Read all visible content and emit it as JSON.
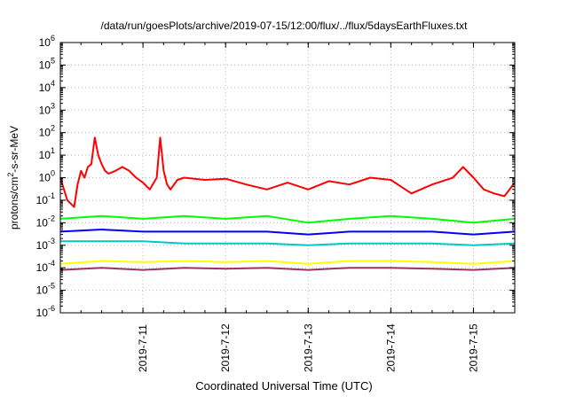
{
  "title": "/data/run/goesPlots/archive/2019-07-15/12:00/flux/../flux/5daysEarthFluxes.txt",
  "chart_data": {
    "type": "line",
    "title": "/data/run/goesPlots/archive/2019-07-15/12:00/flux/../flux/5daysEarthFluxes.txt",
    "xlabel": "Coordinated Universal Time (UTC)",
    "ylabel_parts": [
      "protons/cm",
      "2",
      "-s-sr-MeV"
    ],
    "y_scale": "log",
    "ylim": [
      1e-06,
      1000000.0
    ],
    "y_ticks": [
      {
        "value": -6,
        "base": "10",
        "exp": "-6"
      },
      {
        "value": -5,
        "base": "10",
        "exp": "-5"
      },
      {
        "value": -4,
        "base": "10",
        "exp": "-4"
      },
      {
        "value": -3,
        "base": "10",
        "exp": "-3"
      },
      {
        "value": -2,
        "base": "10",
        "exp": "-2"
      },
      {
        "value": -1,
        "base": "10",
        "exp": "-1"
      },
      {
        "value": 0,
        "base": "10",
        "exp": "0"
      },
      {
        "value": 1,
        "base": "10",
        "exp": "1"
      },
      {
        "value": 2,
        "base": "10",
        "exp": "2"
      },
      {
        "value": 3,
        "base": "10",
        "exp": "3"
      },
      {
        "value": 4,
        "base": "10",
        "exp": "4"
      },
      {
        "value": 5,
        "base": "10",
        "exp": "5"
      },
      {
        "value": 6,
        "base": "10",
        "exp": "6"
      }
    ],
    "xlim": [
      "2019-07-10T00:00",
      "2019-07-15T12:00"
    ],
    "x_ticks": [
      {
        "label": "2019-7-11",
        "date": "2019-07-11T00:00"
      },
      {
        "label": "2019-7-12",
        "date": "2019-07-12T00:00"
      },
      {
        "label": "2019-7-13",
        "date": "2019-07-13T00:00"
      },
      {
        "label": "2019-7-14",
        "date": "2019-07-14T00:00"
      },
      {
        "label": "2019-7-15",
        "date": "2019-07-15T00:00"
      }
    ],
    "grid": true,
    "colors": {
      "red": "#ff0000",
      "green": "#00ff00",
      "cyan": "#00c8c8",
      "blue": "#0000ff",
      "yellow": "#ffff00",
      "purple": "#993366"
    },
    "series": [
      {
        "color": "#ff0000",
        "x": [
          "2019-07-10T00:00",
          "2019-07-10T02:00",
          "2019-07-10T04:00",
          "2019-07-10T05:00",
          "2019-07-10T06:00",
          "2019-07-10T07:00",
          "2019-07-10T08:00",
          "2019-07-10T09:00",
          "2019-07-10T10:00",
          "2019-07-10T11:00",
          "2019-07-10T12:00",
          "2019-07-10T13:00",
          "2019-07-10T14:00",
          "2019-07-10T16:00",
          "2019-07-10T18:00",
          "2019-07-10T20:00",
          "2019-07-10T22:00",
          "2019-07-11T00:00",
          "2019-07-11T02:00",
          "2019-07-11T04:00",
          "2019-07-11T05:00",
          "2019-07-11T06:00",
          "2019-07-11T07:00",
          "2019-07-11T08:00",
          "2019-07-11T10:00",
          "2019-07-11T12:00",
          "2019-07-11T18:00",
          "2019-07-12T00:00",
          "2019-07-12T06:00",
          "2019-07-12T12:00",
          "2019-07-12T18:00",
          "2019-07-13T00:00",
          "2019-07-13T06:00",
          "2019-07-13T12:00",
          "2019-07-13T18:00",
          "2019-07-14T00:00",
          "2019-07-14T06:00",
          "2019-07-14T12:00",
          "2019-07-14T18:00",
          "2019-07-14T21:00",
          "2019-07-15T00:00",
          "2019-07-15T03:00",
          "2019-07-15T06:00",
          "2019-07-15T09:00",
          "2019-07-15T12:00"
        ],
        "y": [
          1.0,
          0.1,
          0.05,
          0.5,
          2.0,
          1.0,
          3.0,
          4.0,
          60.0,
          10.0,
          4.0,
          2.0,
          1.5,
          2.0,
          3.0,
          2.0,
          1.0,
          0.6,
          0.3,
          1.0,
          60.0,
          2.0,
          0.5,
          0.3,
          0.8,
          1.0,
          0.8,
          0.9,
          0.5,
          0.3,
          0.6,
          0.3,
          0.7,
          0.5,
          1.0,
          0.8,
          0.2,
          0.5,
          1.0,
          3.0,
          1.0,
          0.3,
          0.2,
          0.15,
          0.6
        ]
      },
      {
        "color": "#00ff00",
        "x": [
          "2019-07-10T00:00",
          "2019-07-10T12:00",
          "2019-07-11T00:00",
          "2019-07-11T12:00",
          "2019-07-12T00:00",
          "2019-07-12T12:00",
          "2019-07-13T00:00",
          "2019-07-13T12:00",
          "2019-07-14T00:00",
          "2019-07-14T12:00",
          "2019-07-15T00:00",
          "2019-07-15T12:00"
        ],
        "y": [
          0.015,
          0.02,
          0.015,
          0.02,
          0.015,
          0.02,
          0.01,
          0.015,
          0.02,
          0.015,
          0.01,
          0.015
        ]
      },
      {
        "color": "#0000ff",
        "x": [
          "2019-07-10T00:00",
          "2019-07-10T12:00",
          "2019-07-11T00:00",
          "2019-07-11T12:00",
          "2019-07-12T00:00",
          "2019-07-12T12:00",
          "2019-07-13T00:00",
          "2019-07-13T12:00",
          "2019-07-14T00:00",
          "2019-07-14T12:00",
          "2019-07-15T00:00",
          "2019-07-15T12:00"
        ],
        "y": [
          0.004,
          0.005,
          0.004,
          0.004,
          0.004,
          0.004,
          0.003,
          0.004,
          0.004,
          0.004,
          0.003,
          0.004
        ]
      },
      {
        "color": "#00c8c8",
        "x": [
          "2019-07-10T00:00",
          "2019-07-10T12:00",
          "2019-07-11T00:00",
          "2019-07-11T12:00",
          "2019-07-12T00:00",
          "2019-07-12T12:00",
          "2019-07-13T00:00",
          "2019-07-13T12:00",
          "2019-07-14T00:00",
          "2019-07-14T12:00",
          "2019-07-15T00:00",
          "2019-07-15T12:00"
        ],
        "y": [
          0.0015,
          0.0015,
          0.0015,
          0.0012,
          0.0012,
          0.0012,
          0.001,
          0.0012,
          0.0012,
          0.0012,
          0.001,
          0.0012
        ]
      },
      {
        "color": "#ffff00",
        "x": [
          "2019-07-10T00:00",
          "2019-07-10T12:00",
          "2019-07-11T00:00",
          "2019-07-11T12:00",
          "2019-07-12T00:00",
          "2019-07-12T12:00",
          "2019-07-13T00:00",
          "2019-07-13T12:00",
          "2019-07-14T00:00",
          "2019-07-14T12:00",
          "2019-07-15T00:00",
          "2019-07-15T12:00"
        ],
        "y": [
          0.00015,
          0.0002,
          0.00018,
          0.0002,
          0.00018,
          0.0002,
          0.00015,
          0.0002,
          0.0002,
          0.00018,
          0.00015,
          0.0002
        ]
      },
      {
        "color": "#993366",
        "x": [
          "2019-07-10T00:00",
          "2019-07-10T12:00",
          "2019-07-11T00:00",
          "2019-07-11T12:00",
          "2019-07-12T00:00",
          "2019-07-12T12:00",
          "2019-07-13T00:00",
          "2019-07-13T12:00",
          "2019-07-14T00:00",
          "2019-07-14T12:00",
          "2019-07-15T00:00",
          "2019-07-15T12:00"
        ],
        "y": [
          8e-05,
          0.0001,
          8e-05,
          0.0001,
          9e-05,
          0.0001,
          8e-05,
          0.0001,
          0.0001,
          9e-05,
          8e-05,
          0.0001
        ]
      }
    ]
  }
}
